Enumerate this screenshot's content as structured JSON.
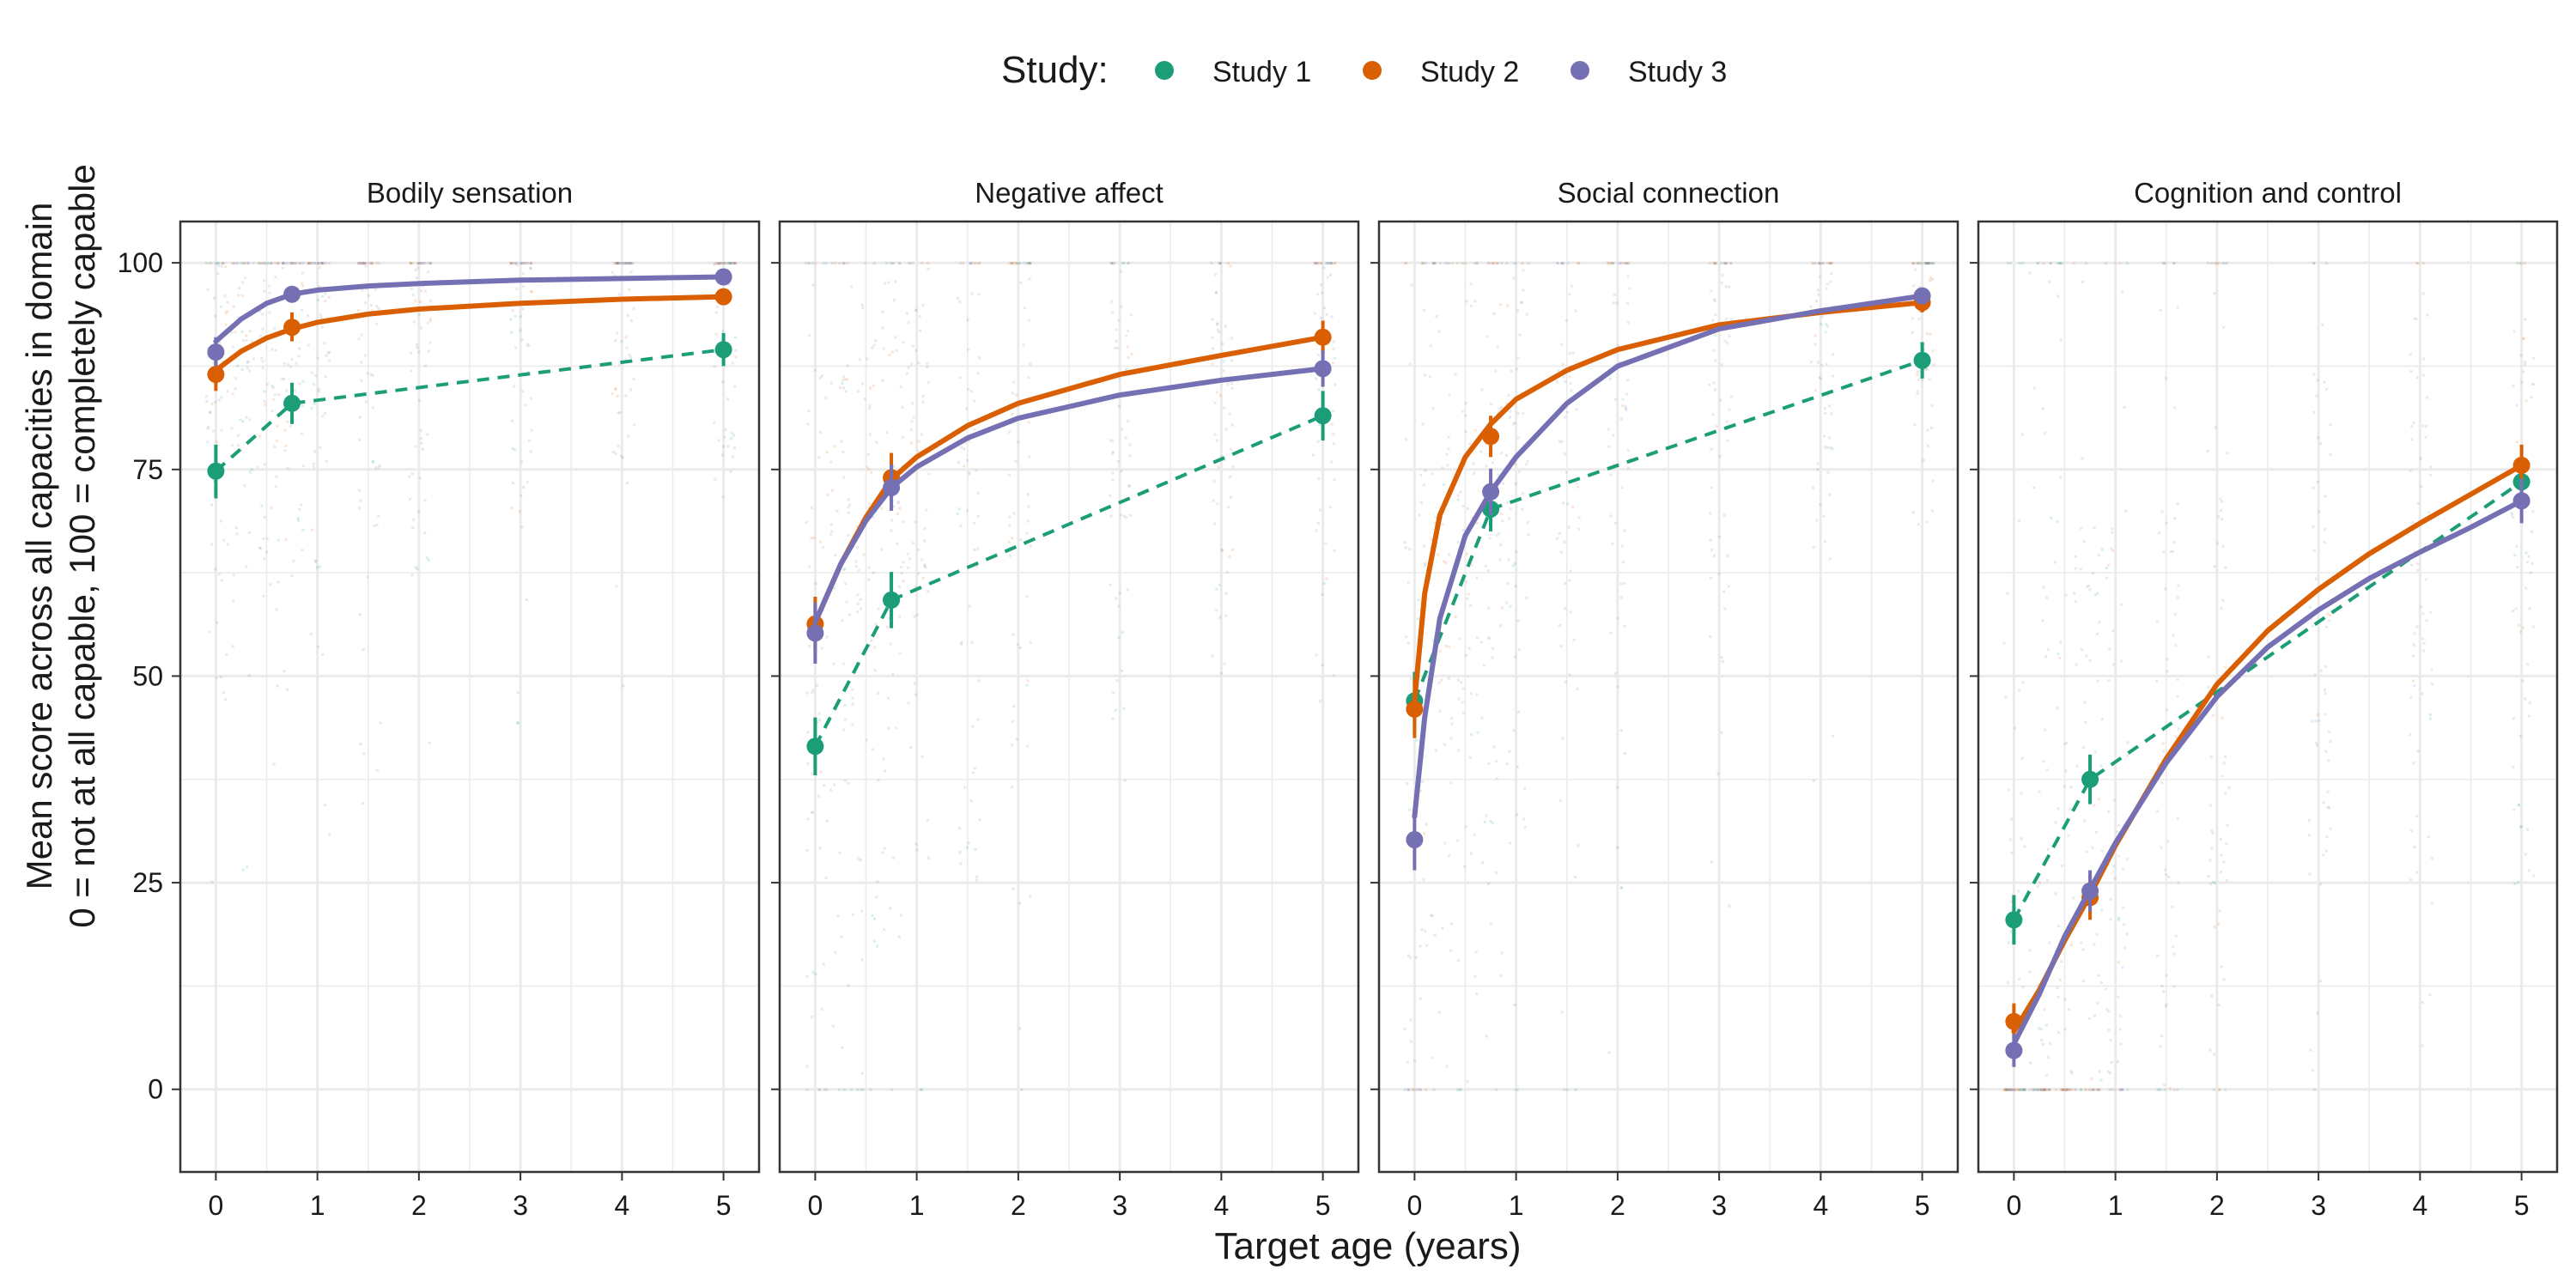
{
  "chart_data": {
    "type": "line",
    "legend": {
      "title": "Study:",
      "position": "top",
      "entries": [
        {
          "label": "Study 1",
          "color": "#1B9E77"
        },
        {
          "label": "Study 2",
          "color": "#D95F02"
        },
        {
          "label": "Study 3",
          "color": "#7570B3"
        }
      ]
    },
    "xlabel": "Target age (years)",
    "ylabel_lines": [
      "Mean score across all capacities in domain",
      "0 = not at all capable, 100 = completely capable"
    ],
    "xlim": [
      -0.35,
      5.35
    ],
    "ylim": [
      -10,
      105
    ],
    "x_ticks": [
      0,
      1,
      2,
      3,
      4,
      5
    ],
    "y_ticks": [
      0,
      25,
      50,
      75,
      100
    ],
    "grid": true,
    "panels": [
      {
        "title": "Bodily sensation",
        "series": [
          {
            "name": "Study 1",
            "color": "#1B9E77",
            "line": "dashed",
            "points": [
              {
                "x": 0,
                "y": 74.8,
                "lo": 71.5,
                "hi": 78.0
              },
              {
                "x": 0.75,
                "y": 83.0,
                "lo": 80.5,
                "hi": 85.5
              },
              {
                "x": 5,
                "y": 89.5,
                "lo": 87.5,
                "hi": 91.5
              }
            ]
          },
          {
            "name": "Study 2",
            "color": "#D95F02",
            "line": "solid",
            "points": [
              {
                "x": 0,
                "y": 86.5,
                "lo": 84.5,
                "hi": 88.5
              },
              {
                "x": 0.75,
                "y": 92.2,
                "lo": 90.5,
                "hi": 94.0
              },
              {
                "x": 5,
                "y": 95.9,
                "lo": 95.0,
                "hi": 96.8
              }
            ],
            "fit": [
              [
                0,
                87.0
              ],
              [
                0.25,
                89.3
              ],
              [
                0.5,
                90.9
              ],
              [
                0.75,
                92.0
              ],
              [
                1,
                92.8
              ],
              [
                1.5,
                93.8
              ],
              [
                2,
                94.4
              ],
              [
                3,
                95.1
              ],
              [
                4,
                95.6
              ],
              [
                5,
                95.9
              ]
            ]
          },
          {
            "name": "Study 3",
            "color": "#7570B3",
            "line": "solid",
            "points": [
              {
                "x": 0,
                "y": 89.2,
                "lo": 87.5,
                "hi": 91.0
              },
              {
                "x": 0.75,
                "y": 96.2,
                "lo": 95.3,
                "hi": 97.1
              },
              {
                "x": 5,
                "y": 98.3,
                "lo": 97.8,
                "hi": 98.8
              }
            ],
            "fit": [
              [
                0,
                90.5
              ],
              [
                0.25,
                93.2
              ],
              [
                0.5,
                95.1
              ],
              [
                0.75,
                96.2
              ],
              [
                1,
                96.7
              ],
              [
                1.5,
                97.2
              ],
              [
                2,
                97.5
              ],
              [
                3,
                97.9
              ],
              [
                4,
                98.1
              ],
              [
                5,
                98.3
              ]
            ]
          }
        ]
      },
      {
        "title": "Negative affect",
        "series": [
          {
            "name": "Study 1",
            "color": "#1B9E77",
            "line": "dashed",
            "points": [
              {
                "x": 0,
                "y": 41.5,
                "lo": 38.0,
                "hi": 45.0
              },
              {
                "x": 0.75,
                "y": 59.2,
                "lo": 55.8,
                "hi": 62.6
              },
              {
                "x": 5,
                "y": 81.5,
                "lo": 78.5,
                "hi": 84.5
              }
            ]
          },
          {
            "name": "Study 2",
            "color": "#D95F02",
            "line": "solid",
            "points": [
              {
                "x": 0,
                "y": 56.3,
                "lo": 53.0,
                "hi": 59.6
              },
              {
                "x": 0.75,
                "y": 74.0,
                "lo": 71.0,
                "hi": 77.0
              },
              {
                "x": 5,
                "y": 91.0,
                "lo": 89.0,
                "hi": 93.0
              }
            ],
            "fit": [
              [
                0,
                56.5
              ],
              [
                0.25,
                63.5
              ],
              [
                0.5,
                69.2
              ],
              [
                0.75,
                73.8
              ],
              [
                1,
                76.5
              ],
              [
                1.5,
                80.3
              ],
              [
                2,
                83.0
              ],
              [
                3,
                86.5
              ],
              [
                4,
                88.8
              ],
              [
                5,
                91.0
              ]
            ]
          },
          {
            "name": "Study 3",
            "color": "#7570B3",
            "line": "solid",
            "points": [
              {
                "x": 0,
                "y": 55.2,
                "lo": 51.5,
                "hi": 58.9
              },
              {
                "x": 0.75,
                "y": 72.8,
                "lo": 70.0,
                "hi": 75.6
              },
              {
                "x": 5,
                "y": 87.2,
                "lo": 85.0,
                "hi": 89.4
              }
            ],
            "fit": [
              [
                0,
                56.5
              ],
              [
                0.25,
                63.5
              ],
              [
                0.5,
                68.8
              ],
              [
                0.75,
                72.8
              ],
              [
                1,
                75.3
              ],
              [
                1.5,
                78.8
              ],
              [
                2,
                81.2
              ],
              [
                3,
                84.0
              ],
              [
                4,
                85.8
              ],
              [
                5,
                87.2
              ]
            ]
          }
        ]
      },
      {
        "title": "Social connection",
        "series": [
          {
            "name": "Study 1",
            "color": "#1B9E77",
            "line": "dashed",
            "points": [
              {
                "x": 0,
                "y": 47.0,
                "lo": 43.5,
                "hi": 50.5
              },
              {
                "x": 0.75,
                "y": 70.2,
                "lo": 67.5,
                "hi": 72.9
              },
              {
                "x": 5,
                "y": 88.2,
                "lo": 86.0,
                "hi": 90.4
              }
            ]
          },
          {
            "name": "Study 2",
            "color": "#D95F02",
            "line": "solid",
            "points": [
              {
                "x": 0,
                "y": 46.0,
                "lo": 42.5,
                "hi": 49.5
              },
              {
                "x": 0.75,
                "y": 79.0,
                "lo": 76.5,
                "hi": 81.5
              },
              {
                "x": 5,
                "y": 95.2,
                "lo": 94.0,
                "hi": 96.4
              }
            ],
            "fit": [
              [
                0,
                47.0
              ],
              [
                0.1,
                60.0
              ],
              [
                0.25,
                69.5
              ],
              [
                0.5,
                76.5
              ],
              [
                0.75,
                80.5
              ],
              [
                1,
                83.5
              ],
              [
                1.5,
                87.0
              ],
              [
                2,
                89.5
              ],
              [
                3,
                92.5
              ],
              [
                4,
                94.0
              ],
              [
                5,
                95.2
              ]
            ]
          },
          {
            "name": "Study 3",
            "color": "#7570B3",
            "line": "solid",
            "points": [
              {
                "x": 0,
                "y": 30.2,
                "lo": 26.5,
                "hi": 33.9
              },
              {
                "x": 0.75,
                "y": 72.3,
                "lo": 69.5,
                "hi": 75.1
              },
              {
                "x": 5,
                "y": 96.0,
                "lo": 95.0,
                "hi": 97.0
              }
            ],
            "fit": [
              [
                0,
                33.0
              ],
              [
                0.1,
                45.0
              ],
              [
                0.25,
                57.0
              ],
              [
                0.5,
                67.0
              ],
              [
                0.75,
                72.3
              ],
              [
                1,
                76.5
              ],
              [
                1.5,
                83.0
              ],
              [
                2,
                87.5
              ],
              [
                3,
                92.0
              ],
              [
                4,
                94.2
              ],
              [
                5,
                96.0
              ]
            ]
          }
        ]
      },
      {
        "title": "Cognition and control",
        "series": [
          {
            "name": "Study 1",
            "color": "#1B9E77",
            "line": "dashed",
            "points": [
              {
                "x": 0,
                "y": 20.5,
                "lo": 17.5,
                "hi": 23.5
              },
              {
                "x": 0.75,
                "y": 37.5,
                "lo": 34.5,
                "hi": 40.5
              },
              {
                "x": 5,
                "y": 73.5,
                "lo": 71.0,
                "hi": 76.0
              }
            ]
          },
          {
            "name": "Study 2",
            "color": "#D95F02",
            "line": "solid",
            "points": [
              {
                "x": 0,
                "y": 8.2,
                "lo": 6.0,
                "hi": 10.4
              },
              {
                "x": 0.75,
                "y": 23.2,
                "lo": 20.5,
                "hi": 25.9
              },
              {
                "x": 5,
                "y": 75.5,
                "lo": 73.0,
                "hi": 78.0
              }
            ],
            "fit": [
              [
                0,
                7.0
              ],
              [
                0.25,
                12.0
              ],
              [
                0.5,
                18.0
              ],
              [
                0.75,
                23.5
              ],
              [
                1,
                29.5
              ],
              [
                1.5,
                40.0
              ],
              [
                2,
                49.0
              ],
              [
                2.5,
                55.5
              ],
              [
                3,
                60.5
              ],
              [
                3.5,
                64.8
              ],
              [
                4,
                68.5
              ],
              [
                4.5,
                72.0
              ],
              [
                5,
                75.5
              ]
            ]
          },
          {
            "name": "Study 3",
            "color": "#7570B3",
            "line": "solid",
            "points": [
              {
                "x": 0,
                "y": 4.7,
                "lo": 2.7,
                "hi": 6.7
              },
              {
                "x": 0.75,
                "y": 24.0,
                "lo": 21.5,
                "hi": 26.5
              },
              {
                "x": 5,
                "y": 71.2,
                "lo": 68.5,
                "hi": 73.9
              }
            ],
            "fit": [
              [
                0,
                5.5
              ],
              [
                0.25,
                11.5
              ],
              [
                0.5,
                18.5
              ],
              [
                0.75,
                24.2
              ],
              [
                1,
                29.8
              ],
              [
                1.5,
                39.5
              ],
              [
                2,
                47.5
              ],
              [
                2.5,
                53.5
              ],
              [
                3,
                58.0
              ],
              [
                3.5,
                61.8
              ],
              [
                4,
                65.0
              ],
              [
                4.5,
                68.0
              ],
              [
                5,
                71.2
              ]
            ]
          }
        ]
      }
    ]
  }
}
